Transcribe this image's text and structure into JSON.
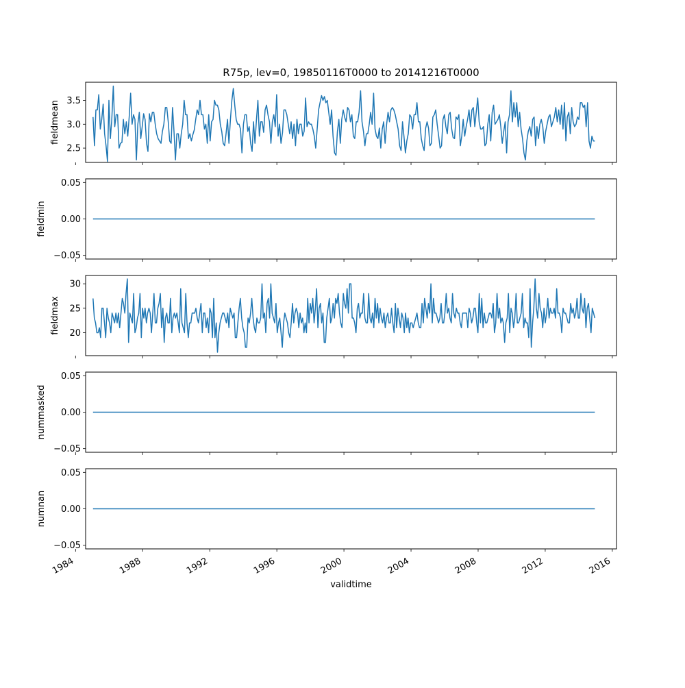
{
  "title": "R75p, lev=0, 19850116T0000 to 20141216T0000",
  "xlabel": "validtime",
  "colors": {
    "series": "#1f77b4",
    "axes": "#000000"
  },
  "chart_data": [
    {
      "type": "line",
      "ylabel": "fieldmean",
      "ylim": [
        2.2,
        3.88
      ],
      "yticks": [
        2.5,
        3.0,
        3.5
      ],
      "ytick_labels": [
        "2.5",
        "3.0",
        "3.5"
      ],
      "xlim": [
        1984.6,
        2016.25
      ],
      "xticks": [
        1984,
        1988,
        1992,
        1996,
        2000,
        2004,
        2008,
        2012,
        2016
      ],
      "xtick_labels": [
        "1984",
        "1988",
        "1992",
        "1996",
        "2000",
        "2004",
        "2008",
        "2012",
        "2016"
      ],
      "xtick_labels_visible": false,
      "x_start": "1985-01-16",
      "x_end": "2014-12-16",
      "step": "monthly",
      "values": [
        3.15,
        2.55,
        3.3,
        3.3,
        3.62,
        2.9,
        3.1,
        3.42,
        2.8,
        2.55,
        2.22,
        3.5,
        2.7,
        3.1,
        3.8,
        2.95,
        3.2,
        3.2,
        2.5,
        2.6,
        2.62,
        3.1,
        2.8,
        3.05,
        2.75,
        3.15,
        3.65,
        3.0,
        3.2,
        3.1,
        2.25,
        3.0,
        3.25,
        2.7,
        2.95,
        3.22,
        3.1,
        2.6,
        2.43,
        3.22,
        3.05,
        3.25,
        3.25,
        3.0,
        2.8,
        2.7,
        2.65,
        2.6,
        2.85,
        3.0,
        3.35,
        3.35,
        3.05,
        2.65,
        2.6,
        3.35,
        2.85,
        2.25,
        2.8,
        2.8,
        2.5,
        2.8,
        3.0,
        3.5,
        3.2,
        3.2,
        2.7,
        2.8,
        2.65,
        2.78,
        2.88,
        3.1,
        3.3,
        3.2,
        3.5,
        3.2,
        3.2,
        2.9,
        3.0,
        2.6,
        3.2,
        2.65,
        3.05,
        3.1,
        3.5,
        3.4,
        3.4,
        3.3,
        3.0,
        2.85,
        2.6,
        2.55,
        2.8,
        3.1,
        2.6,
        3.1,
        3.5,
        3.75,
        3.4,
        3.1,
        3.0,
        3.0,
        2.9,
        2.4,
        3.0,
        3.2,
        3.2,
        2.85,
        2.95,
        2.6,
        2.43,
        3.05,
        2.6,
        3.1,
        3.5,
        2.75,
        3.05,
        3.05,
        2.83,
        3.3,
        3.4,
        3.2,
        3.05,
        2.6,
        3.05,
        3.2,
        2.95,
        3.62,
        2.75,
        3.0,
        2.6,
        2.82,
        3.3,
        3.3,
        3.2,
        3.0,
        2.8,
        3.05,
        2.7,
        3.0,
        2.55,
        3.1,
        2.8,
        3.0,
        3.0,
        2.75,
        2.85,
        3.55,
        2.95,
        3.05,
        3.0,
        3.0,
        2.9,
        2.75,
        2.5,
        2.9,
        3.3,
        3.45,
        3.6,
        3.5,
        3.58,
        3.45,
        3.5,
        3.25,
        3.0,
        3.3,
        2.75,
        2.4,
        2.35,
        2.85,
        3.1,
        2.6,
        3.1,
        3.3,
        3.15,
        3.05,
        3.35,
        3.3,
        3.05,
        3.2,
        2.75,
        2.7,
        3.05,
        3.05,
        3.25,
        3.7,
        3.05,
        2.85,
        2.55,
        2.8,
        2.8,
        3.0,
        3.25,
        3.0,
        3.65,
        2.9,
        2.75,
        2.7,
        2.92,
        2.5,
        2.9,
        3.05,
        2.6,
        3.0,
        3.25,
        3.05,
        3.3,
        3.35,
        3.3,
        3.2,
        3.05,
        2.9,
        2.55,
        2.45,
        3.05,
        2.75,
        2.4,
        2.65,
        2.8,
        3.2,
        3.15,
        2.9,
        3.2,
        3.2,
        3.45,
        3.05,
        3.05,
        2.7,
        2.55,
        2.45,
        2.92,
        3.05,
        2.92,
        2.55,
        2.6,
        3.15,
        3.2,
        3.3,
        3.0,
        2.75,
        2.5,
        2.55,
        3.1,
        3.2,
        2.95,
        2.8,
        3.2,
        3.25,
        2.9,
        2.72,
        2.7,
        3.15,
        3.1,
        3.2,
        2.55,
        2.75,
        3.1,
        2.75,
        2.95,
        3.1,
        3.3,
        2.95,
        3.3,
        3.35,
        2.95,
        3.25,
        3.55,
        3.05,
        2.9,
        2.9,
        2.95,
        2.55,
        2.6,
        3.0,
        3.2,
        2.65,
        3.25,
        3.4,
        3.0,
        3.05,
        3.1,
        3.2,
        2.95,
        2.6,
        2.85,
        3.05,
        2.4,
        3.05,
        3.2,
        3.7,
        3.05,
        3.45,
        3.15,
        3.45,
        2.95,
        3.25,
        2.9,
        2.7,
        2.4,
        2.25,
        2.65,
        2.85,
        2.95,
        2.75,
        3.1,
        3.15,
        2.55,
        2.95,
        2.7,
        3.0,
        3.1,
        2.95,
        2.6,
        2.85,
        3.0,
        3.15,
        3.2,
        2.95,
        3.05,
        3.15,
        3.35,
        3.05,
        3.3,
        3.0,
        3.4,
        2.9,
        3.45,
        2.65,
        3.15,
        3.25,
        2.8,
        3.35,
        3.05,
        2.95,
        3.0,
        3.15,
        3.1,
        3.45,
        3.45,
        3.35,
        3.4,
        2.95,
        3.45,
        2.65,
        2.5,
        2.75,
        2.65,
        2.65
      ]
    },
    {
      "type": "line",
      "ylabel": "fieldmin",
      "ylim": [
        -0.055,
        0.055
      ],
      "yticks": [
        -0.05,
        0.0,
        0.05
      ],
      "ytick_labels": [
        "−0.05",
        "0.00",
        "0.05"
      ],
      "xlim": [
        1984.6,
        2016.25
      ],
      "xticks": [
        1984,
        1988,
        1992,
        1996,
        2000,
        2004,
        2008,
        2012,
        2016
      ],
      "xtick_labels": [
        "1984",
        "1988",
        "1992",
        "1996",
        "2000",
        "2004",
        "2008",
        "2012",
        "2016"
      ],
      "xtick_labels_visible": false,
      "x_start": "1985-01-16",
      "x_end": "2014-12-16",
      "step": "monthly",
      "constant": 0.0
    },
    {
      "type": "line",
      "ylabel": "fieldmax",
      "ylim": [
        15.3,
        31.7
      ],
      "yticks": [
        20,
        25,
        30
      ],
      "ytick_labels": [
        "20",
        "25",
        "30"
      ],
      "xlim": [
        1984.6,
        2016.25
      ],
      "xticks": [
        1984,
        1988,
        1992,
        1996,
        2000,
        2004,
        2008,
        2012,
        2016
      ],
      "xtick_labels": [
        "1984",
        "1988",
        "1992",
        "1996",
        "2000",
        "2004",
        "2008",
        "2012",
        "2016"
      ],
      "xtick_labels_visible": false,
      "x_start": "1985-01-16",
      "x_end": "2014-12-16",
      "step": "monthly",
      "values": [
        27,
        23,
        22,
        20,
        20,
        21,
        19,
        25,
        25,
        22,
        19,
        25,
        23,
        22,
        20,
        24,
        23,
        22,
        24,
        22,
        24,
        21,
        24,
        27,
        26,
        24,
        28,
        31,
        18,
        24,
        23,
        22,
        28,
        20,
        21,
        23,
        24,
        28,
        19,
        25,
        23,
        25,
        22,
        24,
        25,
        24,
        20,
        24,
        28,
        22,
        22,
        25,
        26,
        28,
        21,
        25,
        18,
        23,
        24,
        22,
        22,
        27,
        20,
        23,
        24,
        23,
        24,
        22,
        20,
        29,
        22,
        21,
        20,
        28,
        22,
        19,
        22,
        22,
        24,
        24,
        24,
        25,
        23,
        22,
        24,
        26,
        20,
        24,
        24,
        21,
        23,
        20,
        25,
        24,
        19,
        27,
        19,
        22,
        16,
        20,
        22,
        23,
        24,
        24,
        23,
        22,
        24,
        21,
        25,
        24,
        23,
        24,
        19,
        19,
        22,
        25,
        27,
        23,
        21,
        20,
        17,
        17,
        23,
        22,
        24,
        27,
        23,
        21,
        20,
        23,
        22,
        22,
        23,
        30,
        23,
        24,
        20,
        26,
        27,
        23,
        30,
        24,
        23,
        22,
        26,
        20,
        22,
        23,
        20,
        17,
        22,
        24,
        23,
        22,
        20,
        19,
        22,
        26,
        22,
        24,
        25,
        24,
        21,
        24,
        22,
        23,
        20,
        22,
        20,
        27,
        22,
        26,
        24,
        27,
        22,
        25,
        29,
        21,
        25,
        26,
        22,
        24,
        18,
        18,
        23,
        25,
        27,
        22,
        23,
        26,
        23,
        27,
        26,
        28,
        24,
        22,
        21,
        28,
        26,
        25,
        29,
        24,
        30,
        30,
        23,
        23,
        22,
        20,
        25,
        26,
        23,
        24,
        24,
        28,
        23,
        22,
        22,
        28,
        23,
        22,
        24,
        21,
        27,
        23,
        26,
        22,
        25,
        23,
        22,
        24,
        21,
        23,
        24,
        22,
        22,
        25,
        22,
        20,
        26,
        21,
        25,
        23,
        21,
        24,
        23,
        20,
        24,
        21,
        23,
        20,
        22,
        22,
        21,
        22,
        23,
        24,
        22,
        21,
        21,
        26,
        22,
        27,
        25,
        23,
        26,
        24,
        30,
        22,
        27,
        24,
        24,
        23,
        22,
        23,
        26,
        22,
        22,
        24,
        28,
        24,
        25,
        23,
        22,
        28,
        24,
        23,
        25,
        24,
        24,
        22,
        21,
        24,
        24,
        24,
        24,
        21,
        25,
        24,
        22,
        23,
        25,
        25,
        22,
        20,
        28,
        22,
        27,
        21,
        24,
        22,
        22,
        23,
        24,
        24,
        23,
        26,
        20,
        22,
        28,
        23,
        25,
        22,
        23,
        22,
        18,
        22,
        23,
        28,
        20,
        25,
        24,
        21,
        23,
        28,
        22,
        22,
        23,
        24,
        28,
        21,
        23,
        22,
        22,
        19,
        29,
        17,
        22,
        25,
        31,
        25,
        23,
        28,
        25,
        24,
        21,
        25,
        22,
        24,
        27,
        23,
        25,
        24,
        24,
        25,
        23,
        29,
        24,
        24,
        23,
        20,
        25,
        24,
        24,
        23,
        22,
        22,
        26,
        24,
        25,
        23,
        24,
        27,
        23,
        23,
        28,
        25,
        24,
        27,
        21,
        25,
        26,
        23,
        20,
        25,
        24,
        23
      ]
    },
    {
      "type": "line",
      "ylabel": "nummasked",
      "ylim": [
        -0.055,
        0.055
      ],
      "yticks": [
        -0.05,
        0.0,
        0.05
      ],
      "ytick_labels": [
        "−0.05",
        "0.00",
        "0.05"
      ],
      "xlim": [
        1984.6,
        2016.25
      ],
      "xticks": [
        1984,
        1988,
        1992,
        1996,
        2000,
        2004,
        2008,
        2012,
        2016
      ],
      "xtick_labels": [
        "1984",
        "1988",
        "1992",
        "1996",
        "2000",
        "2004",
        "2008",
        "2012",
        "2016"
      ],
      "xtick_labels_visible": false,
      "x_start": "1985-01-16",
      "x_end": "2014-12-16",
      "step": "monthly",
      "constant": 0.0
    },
    {
      "type": "line",
      "ylabel": "numnan",
      "ylim": [
        -0.055,
        0.055
      ],
      "yticks": [
        -0.05,
        0.0,
        0.05
      ],
      "ytick_labels": [
        "−0.05",
        "0.00",
        "0.05"
      ],
      "xlim": [
        1984.6,
        2016.25
      ],
      "xticks": [
        1984,
        1988,
        1992,
        1996,
        2000,
        2004,
        2008,
        2012,
        2016
      ],
      "xtick_labels": [
        "1984",
        "1988",
        "1992",
        "1996",
        "2000",
        "2004",
        "2008",
        "2012",
        "2016"
      ],
      "xtick_labels_visible": true,
      "x_start": "1985-01-16",
      "x_end": "2014-12-16",
      "step": "monthly",
      "constant": 0.0
    }
  ]
}
